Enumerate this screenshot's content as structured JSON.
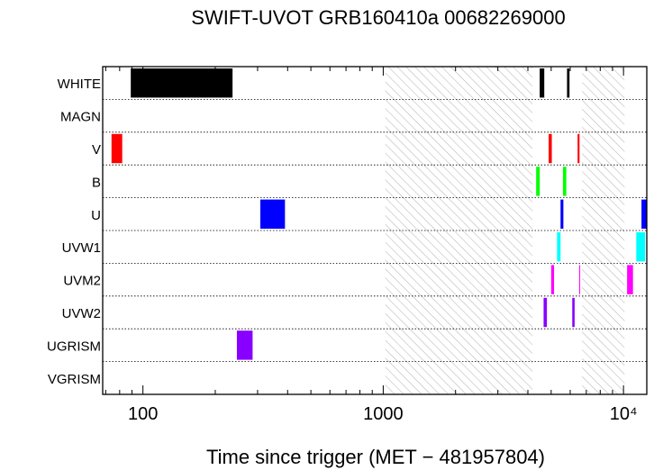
{
  "chart_data": {
    "type": "timeline",
    "title": "SWIFT-UVOT GRB160410a 00682269000",
    "xlabel": "Time since trigger (MET − 481957804)",
    "x_scale": "log",
    "xlim": [
      68,
      12500
    ],
    "x_ticks": [
      {
        "value": 100,
        "label": "100"
      },
      {
        "value": 1000,
        "label": "1000"
      },
      {
        "value": 10000,
        "label": "10⁴"
      }
    ],
    "filters": [
      "WHITE",
      "MAGN",
      "V",
      "B",
      "U",
      "UVW1",
      "UVM2",
      "UVW2",
      "UGRISM",
      "VGRISM"
    ],
    "gaps": [
      [
        1020,
        4180
      ],
      [
        6720,
        10100
      ]
    ],
    "exposures": [
      {
        "filter": "WHITE",
        "color": "#000000",
        "intervals": [
          [
            89,
            236
          ],
          [
            4480,
            4680
          ],
          [
            5820,
            5960
          ]
        ]
      },
      {
        "filter": "MAGN",
        "color": "#000000",
        "intervals": []
      },
      {
        "filter": "V",
        "color": "#ff0000",
        "intervals": [
          [
            74,
            82
          ],
          [
            4880,
            5030
          ],
          [
            6440,
            6560
          ]
        ]
      },
      {
        "filter": "B",
        "color": "#00ff00",
        "intervals": [
          [
            4330,
            4480
          ],
          [
            5600,
            5780
          ]
        ]
      },
      {
        "filter": "U",
        "color": "#0000ff",
        "intervals": [
          [
            308,
            390
          ],
          [
            5470,
            5620
          ],
          [
            11880,
            12500
          ]
        ]
      },
      {
        "filter": "UVW1",
        "color": "#00ffff",
        "intervals": [
          [
            5290,
            5470
          ],
          [
            11300,
            12300
          ]
        ]
      },
      {
        "filter": "UVM2",
        "color": "#ff00ff",
        "intervals": [
          [
            5000,
            5140
          ],
          [
            6545,
            6575
          ],
          [
            10350,
            10950
          ]
        ]
      },
      {
        "filter": "UVW2",
        "color": "#8800ff",
        "intervals": [
          [
            4650,
            4800
          ],
          [
            6120,
            6260
          ]
        ]
      },
      {
        "filter": "UGRISM",
        "color": "#8800ff",
        "intervals": [
          [
            246,
            286
          ]
        ]
      },
      {
        "filter": "VGRISM",
        "color": "#000000",
        "intervals": []
      }
    ]
  }
}
